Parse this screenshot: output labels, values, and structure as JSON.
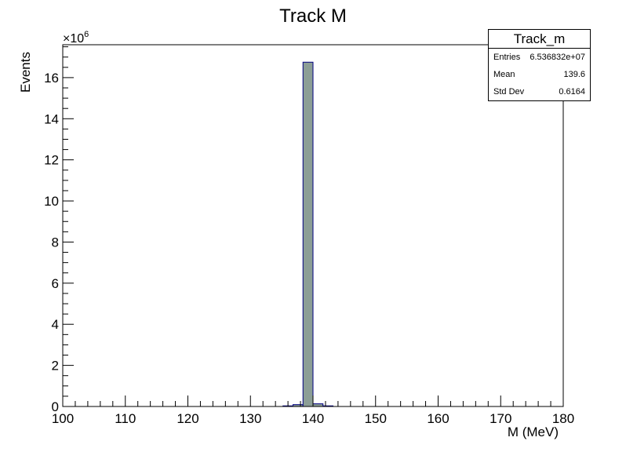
{
  "chart_data": {
    "type": "histogram",
    "title": "Track M",
    "xlabel": "M (MeV)",
    "ylabel": "Events",
    "y_exponent_label": "×10",
    "y_exponent": "6",
    "xlim": [
      100,
      180
    ],
    "ylim": [
      0,
      17.6
    ],
    "y_scale_note": "values in units of 10^6",
    "x_ticks": [
      "100",
      "110",
      "120",
      "130",
      "140",
      "150",
      "160",
      "170",
      "180"
    ],
    "y_ticks": [
      "0",
      "2",
      "4",
      "6",
      "8",
      "10",
      "12",
      "14",
      "16"
    ],
    "bin_width": 1.6,
    "bars": [
      {
        "x0": 135.2,
        "x1": 136.8,
        "value": 0.03
      },
      {
        "x0": 136.8,
        "x1": 138.4,
        "value": 0.09
      },
      {
        "x0": 138.4,
        "x1": 140.0,
        "value": 16.75
      },
      {
        "x0": 140.0,
        "x1": 141.6,
        "value": 0.13
      },
      {
        "x0": 141.6,
        "x1": 143.2,
        "value": 0.03
      }
    ],
    "fill_color": "#8c9e96",
    "edge_color": "#000080",
    "grid": false
  },
  "stats": {
    "title": "Track_m",
    "rows": [
      {
        "label": "Entries",
        "value": "6.536832e+07"
      },
      {
        "label": "Mean",
        "value": "139.6"
      },
      {
        "label": "Std Dev",
        "value": "0.6164"
      }
    ]
  }
}
